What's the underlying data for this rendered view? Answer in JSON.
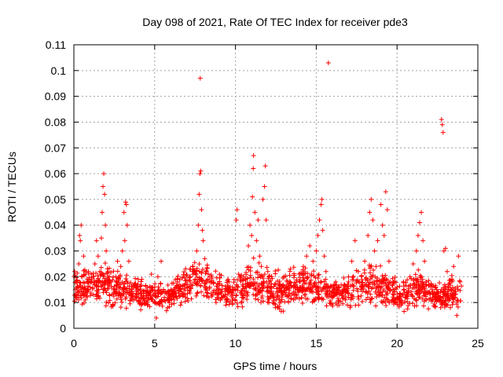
{
  "chart_data": {
    "type": "scatter",
    "title": "Day 098 of 2021, Rate Of TEC Index for receiver pde3",
    "xlabel": "GPS time / hours",
    "ylabel": "ROTI / TECUs",
    "xlim": [
      0,
      25
    ],
    "ylim": [
      0,
      0.11
    ],
    "xticks": [
      0,
      5,
      10,
      15,
      20,
      25
    ],
    "xtick_labels": [
      "0",
      "5",
      "10",
      "15",
      "20",
      "25"
    ],
    "yticks": [
      0,
      0.01,
      0.02,
      0.03,
      0.04,
      0.05,
      0.06,
      0.07,
      0.08,
      0.09,
      0.1,
      0.11
    ],
    "ytick_labels": [
      "0",
      "0.01",
      "0.02",
      "0.03",
      "0.04",
      "0.05",
      "0.06",
      "0.07",
      "0.08",
      "0.09",
      "0.1",
      "0.11"
    ],
    "grid": true,
    "marker": "plus",
    "color": "#ff0000",
    "series": [
      {
        "points": [
          [
            0.05,
            0.022
          ],
          [
            0.1,
            0.015
          ],
          [
            0.15,
            0.018
          ],
          [
            0.2,
            0.012
          ],
          [
            0.3,
            0.025
          ],
          [
            0.35,
            0.036
          ],
          [
            0.4,
            0.034
          ],
          [
            0.45,
            0.04
          ],
          [
            0.5,
            0.02
          ],
          [
            0.55,
            0.013
          ],
          [
            0.6,
            0.028
          ],
          [
            0.7,
            0.011
          ],
          [
            0.8,
            0.018
          ],
          [
            0.9,
            0.022
          ],
          [
            1.0,
            0.016
          ],
          [
            1.1,
            0.019
          ],
          [
            1.2,
            0.013
          ],
          [
            1.3,
            0.025
          ],
          [
            1.4,
            0.034
          ],
          [
            1.5,
            0.028
          ],
          [
            1.6,
            0.022
          ],
          [
            1.7,
            0.035
          ],
          [
            1.75,
            0.045
          ],
          [
            1.8,
            0.055
          ],
          [
            1.85,
            0.06
          ],
          [
            1.9,
            0.052
          ],
          [
            1.95,
            0.04
          ],
          [
            2.0,
            0.03
          ],
          [
            2.1,
            0.022
          ],
          [
            2.2,
            0.013
          ],
          [
            2.3,
            0.018
          ],
          [
            2.4,
            0.009
          ],
          [
            2.5,
            0.014
          ],
          [
            2.6,
            0.02
          ],
          [
            2.7,
            0.026
          ],
          [
            2.8,
            0.016
          ],
          [
            2.9,
            0.024
          ],
          [
            3.0,
            0.03
          ],
          [
            3.1,
            0.045
          ],
          [
            3.15,
            0.034
          ],
          [
            3.2,
            0.049
          ],
          [
            3.25,
            0.048
          ],
          [
            3.3,
            0.04
          ],
          [
            3.4,
            0.026
          ],
          [
            3.5,
            0.014
          ],
          [
            3.6,
            0.011
          ],
          [
            3.8,
            0.017
          ],
          [
            4.0,
            0.012
          ],
          [
            4.2,
            0.019
          ],
          [
            4.4,
            0.01
          ],
          [
            4.6,
            0.014
          ],
          [
            4.8,
            0.021
          ],
          [
            5.0,
            0.016
          ],
          [
            5.1,
            0.004
          ],
          [
            5.2,
            0.02
          ],
          [
            5.4,
            0.026
          ],
          [
            5.6,
            0.012
          ],
          [
            5.8,
            0.008
          ],
          [
            6.0,
            0.015
          ],
          [
            6.2,
            0.011
          ],
          [
            6.4,
            0.018
          ],
          [
            6.6,
            0.009
          ],
          [
            6.8,
            0.013
          ],
          [
            7.0,
            0.016
          ],
          [
            7.2,
            0.02
          ],
          [
            7.4,
            0.022
          ],
          [
            7.5,
            0.019
          ],
          [
            7.6,
            0.03
          ],
          [
            7.7,
            0.04
          ],
          [
            7.75,
            0.052
          ],
          [
            7.8,
            0.06
          ],
          [
            7.82,
            0.097
          ],
          [
            7.85,
            0.061
          ],
          [
            7.9,
            0.046
          ],
          [
            7.95,
            0.038
          ],
          [
            8.0,
            0.034
          ],
          [
            8.1,
            0.027
          ],
          [
            8.2,
            0.022
          ],
          [
            8.3,
            0.019
          ],
          [
            8.4,
            0.016
          ],
          [
            8.6,
            0.013
          ],
          [
            8.8,
            0.01
          ],
          [
            9.0,
            0.017
          ],
          [
            9.2,
            0.012
          ],
          [
            9.4,
            0.009
          ],
          [
            9.6,
            0.018
          ],
          [
            9.8,
            0.011
          ],
          [
            10.0,
            0.015
          ],
          [
            10.05,
            0.042
          ],
          [
            10.1,
            0.046
          ],
          [
            10.2,
            0.021
          ],
          [
            10.4,
            0.012
          ],
          [
            10.6,
            0.019
          ],
          [
            10.8,
            0.032
          ],
          [
            10.9,
            0.04
          ],
          [
            11.0,
            0.036
          ],
          [
            11.05,
            0.051
          ],
          [
            11.1,
            0.062
          ],
          [
            11.12,
            0.067
          ],
          [
            11.2,
            0.045
          ],
          [
            11.3,
            0.034
          ],
          [
            11.4,
            0.042
          ],
          [
            11.5,
            0.028
          ],
          [
            11.6,
            0.024
          ],
          [
            11.7,
            0.05
          ],
          [
            11.8,
            0.055
          ],
          [
            11.85,
            0.063
          ],
          [
            11.9,
            0.042
          ],
          [
            12.0,
            0.022
          ],
          [
            12.2,
            0.016
          ],
          [
            12.4,
            0.012
          ],
          [
            12.6,
            0.008
          ],
          [
            12.8,
            0.014
          ],
          [
            13.0,
            0.02
          ],
          [
            13.2,
            0.018
          ],
          [
            13.4,
            0.023
          ],
          [
            13.6,
            0.016
          ],
          [
            13.8,
            0.012
          ],
          [
            14.0,
            0.018
          ],
          [
            14.2,
            0.024
          ],
          [
            14.4,
            0.028
          ],
          [
            14.6,
            0.032
          ],
          [
            14.8,
            0.026
          ],
          [
            15.0,
            0.03
          ],
          [
            15.1,
            0.036
          ],
          [
            15.2,
            0.042
          ],
          [
            15.3,
            0.048
          ],
          [
            15.35,
            0.05
          ],
          [
            15.4,
            0.038
          ],
          [
            15.5,
            0.028
          ],
          [
            15.6,
            0.022
          ],
          [
            15.75,
            0.103
          ],
          [
            15.8,
            0.016
          ],
          [
            16.0,
            0.012
          ],
          [
            16.2,
            0.018
          ],
          [
            16.4,
            0.009
          ],
          [
            16.6,
            0.014
          ],
          [
            16.8,
            0.011
          ],
          [
            17.0,
            0.018
          ],
          [
            17.2,
            0.026
          ],
          [
            17.4,
            0.034
          ],
          [
            17.6,
            0.022
          ],
          [
            17.8,
            0.016
          ],
          [
            18.0,
            0.026
          ],
          [
            18.2,
            0.036
          ],
          [
            18.3,
            0.045
          ],
          [
            18.4,
            0.05
          ],
          [
            18.5,
            0.042
          ],
          [
            18.6,
            0.03
          ],
          [
            18.7,
            0.024
          ],
          [
            18.8,
            0.034
          ],
          [
            19.0,
            0.048
          ],
          [
            19.1,
            0.04
          ],
          [
            19.2,
            0.036
          ],
          [
            19.3,
            0.053
          ],
          [
            19.4,
            0.046
          ],
          [
            19.5,
            0.026
          ],
          [
            19.6,
            0.018
          ],
          [
            19.8,
            0.013
          ],
          [
            20.0,
            0.016
          ],
          [
            20.2,
            0.011
          ],
          [
            20.4,
            0.018
          ],
          [
            20.6,
            0.014
          ],
          [
            20.8,
            0.02
          ],
          [
            21.0,
            0.025
          ],
          [
            21.2,
            0.03
          ],
          [
            21.3,
            0.036
          ],
          [
            21.4,
            0.041
          ],
          [
            21.5,
            0.045
          ],
          [
            21.6,
            0.034
          ],
          [
            21.7,
            0.026
          ],
          [
            21.8,
            0.018
          ],
          [
            22.0,
            0.014
          ],
          [
            22.2,
            0.011
          ],
          [
            22.4,
            0.016
          ],
          [
            22.6,
            0.012
          ],
          [
            22.7,
            0.008
          ],
          [
            22.75,
            0.081
          ],
          [
            22.8,
            0.079
          ],
          [
            22.85,
            0.076
          ],
          [
            22.9,
            0.03
          ],
          [
            23.0,
            0.031
          ],
          [
            23.1,
            0.022
          ],
          [
            23.2,
            0.015
          ],
          [
            23.3,
            0.008
          ],
          [
            23.4,
            0.019
          ],
          [
            23.5,
            0.024
          ],
          [
            23.6,
            0.012
          ],
          [
            23.7,
            0.005
          ],
          [
            23.8,
            0.028
          ],
          [
            23.9,
            0.018
          ]
        ]
      }
    ],
    "background_band": {
      "description_levels": [
        [
          0,
          0.016,
          0.006
        ],
        [
          2,
          0.017,
          0.007
        ],
        [
          4,
          0.013,
          0.005
        ],
        [
          6,
          0.012,
          0.004
        ],
        [
          7.5,
          0.02,
          0.007
        ],
        [
          8.5,
          0.016,
          0.006
        ],
        [
          10,
          0.013,
          0.005
        ],
        [
          11,
          0.018,
          0.007
        ],
        [
          12.5,
          0.014,
          0.006
        ],
        [
          14,
          0.017,
          0.006
        ],
        [
          15.5,
          0.014,
          0.005
        ],
        [
          17,
          0.014,
          0.005
        ],
        [
          18.5,
          0.018,
          0.007
        ],
        [
          20,
          0.013,
          0.005
        ],
        [
          21.5,
          0.016,
          0.006
        ],
        [
          22.5,
          0.012,
          0.005
        ],
        [
          24,
          0.014,
          0.006
        ]
      ]
    }
  }
}
